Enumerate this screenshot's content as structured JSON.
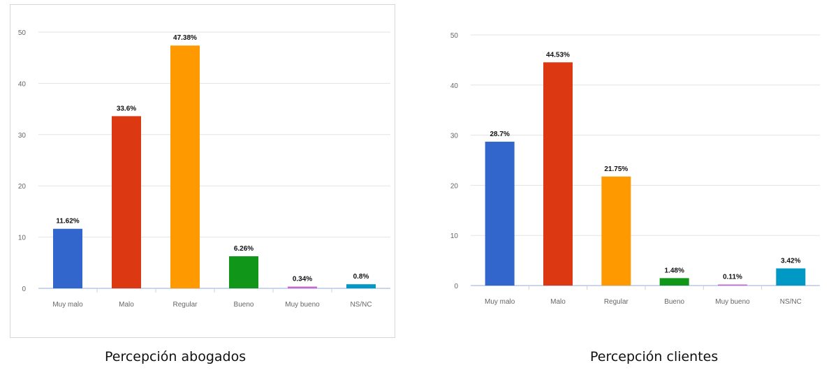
{
  "chart_data": [
    {
      "type": "bar",
      "caption": "Percepción abogados",
      "categories": [
        "Muy malo",
        "Malo",
        "Regular",
        "Bueno",
        "Muy bueno",
        "NS/NC"
      ],
      "values": [
        11.62,
        33.6,
        47.38,
        6.26,
        0.34,
        0.8
      ],
      "data_labels": [
        "11.62%",
        "33.6%",
        "47.38%",
        "6.26%",
        "0.34%",
        "0.8%"
      ],
      "colors": [
        "#3366cc",
        "#dc3912",
        "#ff9900",
        "#109618",
        "#cc66cc",
        "#0099c6"
      ],
      "yticks": [
        "0",
        "10",
        "20",
        "30",
        "40",
        "50"
      ],
      "ylim": [
        0,
        50
      ],
      "grid": true,
      "legend": "none"
    },
    {
      "type": "bar",
      "caption": "Percepción clientes",
      "categories": [
        "Muy malo",
        "Malo",
        "Regular",
        "Bueno",
        "Muy bueno",
        "NS/NC"
      ],
      "values": [
        28.7,
        44.53,
        21.75,
        1.48,
        0.11,
        3.42
      ],
      "data_labels": [
        "28.7%",
        "44.53%",
        "21.75%",
        "1.48%",
        "0.11%",
        "3.42%"
      ],
      "colors": [
        "#3366cc",
        "#dc3912",
        "#ff9900",
        "#109618",
        "#cc66cc",
        "#0099c6"
      ],
      "yticks": [
        "0",
        "10",
        "20",
        "30",
        "40",
        "50"
      ],
      "ylim": [
        0,
        50
      ],
      "grid": true,
      "legend": "none"
    }
  ]
}
